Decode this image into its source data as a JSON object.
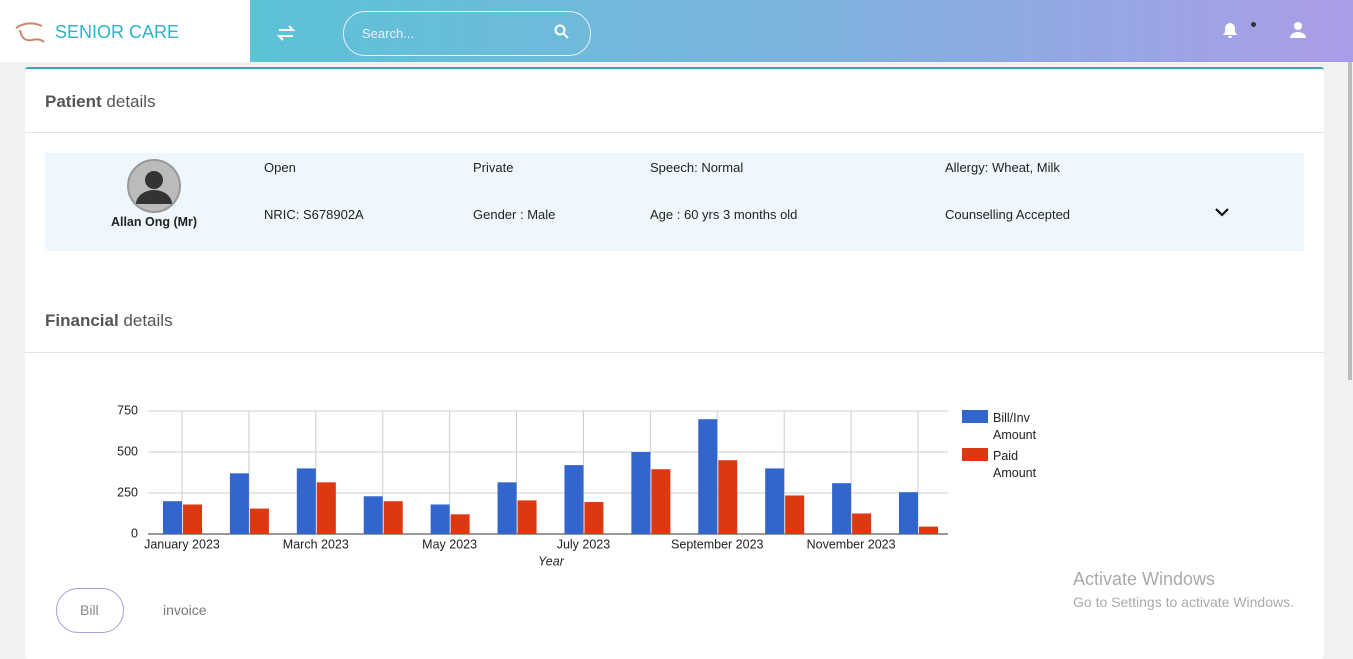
{
  "header": {
    "brand": "SENIOR CARE",
    "search_placeholder": "Search..."
  },
  "patient": {
    "title_bold": "Patient",
    "title_rest": "details",
    "name": "Allan Ong (Mr)",
    "fields": [
      [
        "Open",
        "Private",
        "Speech: Normal",
        "Allergy: Wheat, Milk"
      ],
      [
        "NRIC: S678902A",
        "Gender : Male",
        "Age : 60 yrs 3 months old",
        "Counselling Accepted"
      ]
    ]
  },
  "financial": {
    "title_bold": "Financial",
    "title_rest": "details",
    "tabs": [
      "Bill",
      "invoice"
    ]
  },
  "watermark": {
    "line1": "Activate Windows",
    "line2": "Go to Settings to activate Windows."
  },
  "chart_data": {
    "type": "bar",
    "x_label": "Year",
    "categories": [
      "January 2023",
      null,
      "March 2023",
      null,
      "May 2023",
      null,
      "July 2023",
      null,
      "September 2023",
      null,
      "November 2023",
      null
    ],
    "series": [
      {
        "name": "Bill/Inv Amount",
        "color": "#3366cc",
        "values": [
          200,
          370,
          400,
          230,
          180,
          315,
          420,
          500,
          700,
          400,
          310,
          255
        ]
      },
      {
        "name": "Paid Amount",
        "color": "#dc3912",
        "values": [
          180,
          155,
          315,
          200,
          120,
          205,
          195,
          395,
          450,
          235,
          125,
          45
        ]
      }
    ],
    "ylim": [
      0,
      750
    ],
    "yticks": [
      0,
      250,
      500,
      750
    ],
    "grid": true
  }
}
